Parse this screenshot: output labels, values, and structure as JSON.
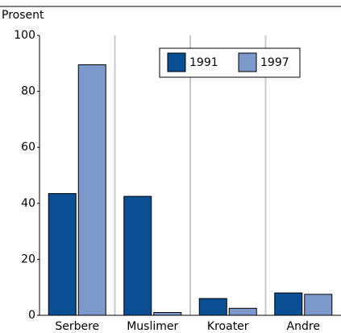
{
  "chart_data": {
    "type": "bar",
    "ylabel": "Prosent",
    "categories": [
      "Serbere",
      "Muslimer",
      "Kroater",
      "Andre"
    ],
    "series": [
      {
        "name": "1991",
        "color": "#0a4f94",
        "values": [
          43.5,
          42.5,
          6,
          8
        ]
      },
      {
        "name": "1997",
        "color": "#7b9acb",
        "values": [
          89.5,
          1,
          2.5,
          7.5
        ]
      }
    ],
    "ylim": [
      0,
      100
    ],
    "yticks": [
      0,
      20,
      40,
      60,
      80,
      100
    ],
    "grid": true,
    "legend": "upper right"
  }
}
